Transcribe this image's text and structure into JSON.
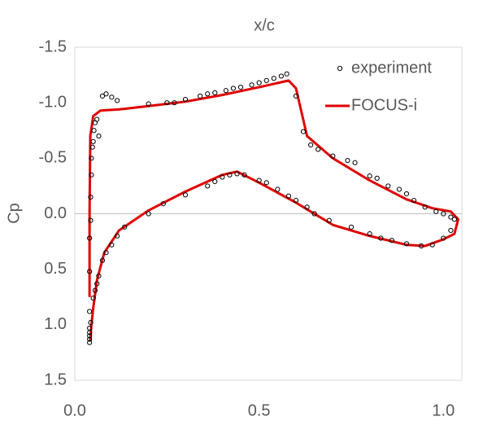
{
  "chart_data": {
    "type": "scatter",
    "title": "x/c",
    "y_label": "Cp",
    "xlim": [
      0,
      1.05
    ],
    "ylim": [
      -1.5,
      1.5
    ],
    "y_inverted": true,
    "xticks": [
      {
        "value": 0,
        "label": "0.0"
      },
      {
        "value": 0.5,
        "label": "0.5"
      },
      {
        "value": 1,
        "label": "1.0"
      }
    ],
    "yticks": [
      {
        "value": -1.5,
        "label": "-1.5"
      },
      {
        "value": -1,
        "label": "-1.0"
      },
      {
        "value": -0.5,
        "label": "-0.5"
      },
      {
        "value": 0,
        "label": "0.0"
      },
      {
        "value": 0.5,
        "label": "0.5"
      },
      {
        "value": 1,
        "label": "1.0"
      },
      {
        "value": 1.5,
        "label": "1.5"
      }
    ],
    "zero_line": true,
    "legend": "top-right",
    "series": [
      {
        "name": "experiment",
        "mode": "markers",
        "color": "#000000",
        "x": [
          0.04,
          0.04,
          0.04,
          0.04,
          0.04,
          0.043,
          0.04,
          0.04,
          0.04,
          0.043,
          0.043,
          0.045,
          0.045,
          0.048,
          0.05,
          0.052,
          0.055,
          0.06,
          0.065,
          0.075,
          0.085,
          0.1,
          0.115,
          0.2,
          0.25,
          0.27,
          0.3,
          0.34,
          0.36,
          0.38,
          0.41,
          0.43,
          0.45,
          0.48,
          0.5,
          0.52,
          0.54,
          0.56,
          0.575,
          0.6,
          0.62,
          0.64,
          0.66,
          0.7,
          0.74,
          0.76,
          0.8,
          0.82,
          0.85,
          0.88,
          0.9,
          0.92,
          0.95,
          0.98,
          1.0,
          1.02,
          0.05,
          0.055,
          0.06,
          0.065,
          0.075,
          0.085,
          0.1,
          0.115,
          0.135,
          0.2,
          0.24,
          0.3,
          0.36,
          0.38,
          0.4,
          0.42,
          0.44,
          0.46,
          0.5,
          0.52,
          0.55,
          0.58,
          0.6,
          0.63,
          0.65,
          0.69,
          0.75,
          0.8,
          0.83,
          0.86,
          0.9,
          0.94,
          0.97,
          1.0,
          1.02,
          1.03
        ],
        "values": [
          1.16,
          1.13,
          1.1,
          1.07,
          1.03,
          0.98,
          0.88,
          0.52,
          0.22,
          0.06,
          -0.15,
          -0.35,
          -0.5,
          -0.6,
          -0.65,
          -0.75,
          -0.82,
          -0.85,
          -0.7,
          -1.06,
          -1.08,
          -1.05,
          -1.02,
          -0.99,
          -1.0,
          -1.0,
          -1.03,
          -1.06,
          -1.08,
          -1.09,
          -1.11,
          -1.13,
          -1.14,
          -1.16,
          -1.18,
          -1.2,
          -1.22,
          -1.24,
          -1.26,
          -1.06,
          -0.74,
          -0.62,
          -0.58,
          -0.52,
          -0.48,
          -0.46,
          -0.34,
          -0.32,
          -0.25,
          -0.22,
          -0.18,
          -0.12,
          -0.06,
          -0.02,
          0.0,
          0.03,
          0.76,
          0.69,
          0.63,
          0.56,
          0.42,
          0.35,
          0.28,
          0.2,
          0.12,
          0.0,
          -0.09,
          -0.17,
          -0.25,
          -0.29,
          -0.33,
          -0.35,
          -0.36,
          -0.35,
          -0.3,
          -0.28,
          -0.22,
          -0.16,
          -0.12,
          -0.06,
          0.0,
          0.06,
          0.12,
          0.18,
          0.22,
          0.24,
          0.27,
          0.29,
          0.28,
          0.22,
          0.15,
          0.05
        ]
      },
      {
        "name": "FOCUS-i",
        "mode": "lines",
        "color": "#e00000",
        "x": [
          0.04,
          0.04,
          0.042,
          0.05,
          0.07,
          0.12,
          0.2,
          0.3,
          0.4,
          0.5,
          0.58,
          0.6,
          0.63,
          0.7,
          0.8,
          0.9,
          0.97,
          1.02,
          1.04,
          1.03,
          1.0,
          0.95,
          0.9,
          0.8,
          0.7,
          0.6,
          0.5,
          0.44,
          0.4,
          0.3,
          0.2,
          0.12,
          0.08,
          0.06,
          0.05,
          0.045,
          0.042
        ],
        "values": [
          0.75,
          0.0,
          -0.7,
          -0.88,
          -0.93,
          -0.94,
          -0.97,
          -1.01,
          -1.07,
          -1.14,
          -1.2,
          -1.13,
          -0.7,
          -0.5,
          -0.3,
          -0.13,
          -0.05,
          -0.02,
          0.05,
          0.18,
          0.23,
          0.29,
          0.28,
          0.2,
          0.1,
          -0.1,
          -0.28,
          -0.38,
          -0.35,
          -0.2,
          -0.03,
          0.15,
          0.35,
          0.6,
          0.85,
          1.0,
          1.15
        ]
      }
    ]
  }
}
